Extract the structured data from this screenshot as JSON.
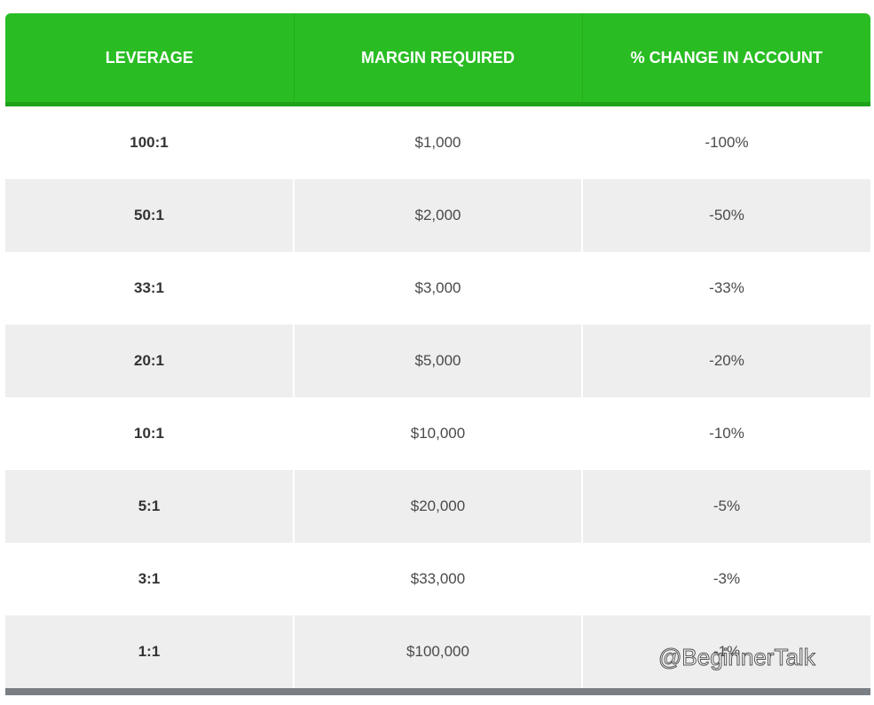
{
  "table": {
    "headers": [
      "LEVERAGE",
      "MARGIN REQUIRED",
      "% CHANGE IN ACCOUNT"
    ],
    "rows": [
      {
        "leverage": "100:1",
        "margin": "$1,000",
        "change": "-100%"
      },
      {
        "leverage": "50:1",
        "margin": "$2,000",
        "change": "-50%"
      },
      {
        "leverage": "33:1",
        "margin": "$3,000",
        "change": "-33%"
      },
      {
        "leverage": "20:1",
        "margin": "$5,000",
        "change": "-20%"
      },
      {
        "leverage": "10:1",
        "margin": "$10,000",
        "change": "-10%"
      },
      {
        "leverage": "5:1",
        "margin": "$20,000",
        "change": "-5%"
      },
      {
        "leverage": "3:1",
        "margin": "$33,000",
        "change": "-3%"
      },
      {
        "leverage": "1:1",
        "margin": "$100,000",
        "change": "-1%"
      }
    ]
  },
  "colors": {
    "header_green": "#29bd23",
    "row_stripe": "#eeeeee",
    "footer_bar": "#7a7f85"
  },
  "watermark": "@BeginnerTalk"
}
